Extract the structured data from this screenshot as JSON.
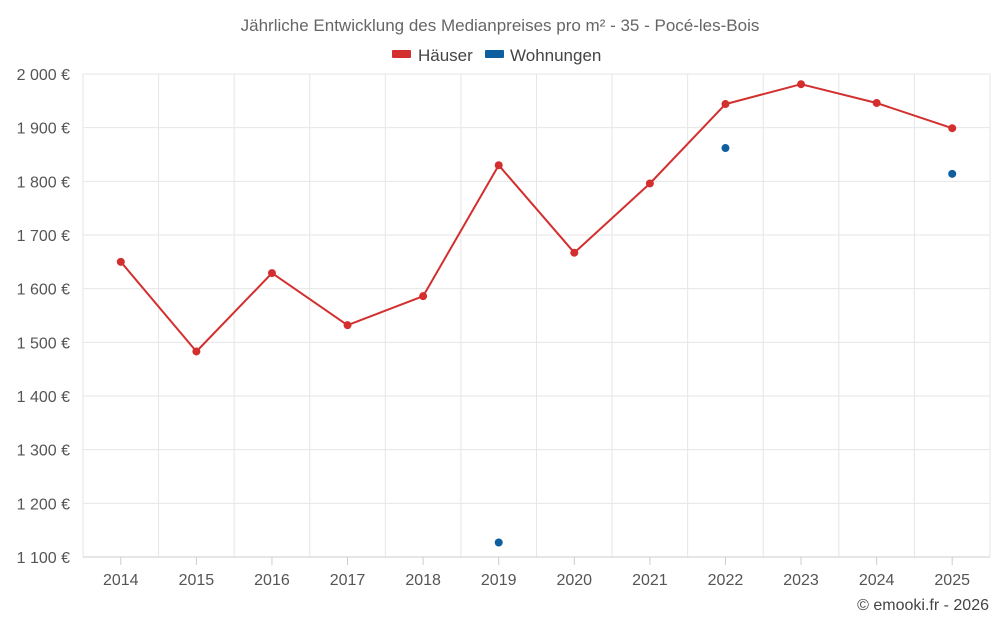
{
  "chart_data": {
    "type": "line",
    "title": "Jährliche Entwicklung des Medianpreises pro m² - 35 - Pocé-les-Bois",
    "categories": [
      "2014",
      "2015",
      "2016",
      "2017",
      "2018",
      "2019",
      "2020",
      "2021",
      "2022",
      "2023",
      "2024",
      "2025"
    ],
    "series": [
      {
        "name": "Häuser",
        "color": "#d32f2f",
        "values": [
          1650,
          1483,
          1629,
          1532,
          1586,
          1830,
          1667,
          1796,
          1944,
          1981,
          1946,
          1899
        ]
      },
      {
        "name": "Wohnungen",
        "color": "#0d5fa0",
        "values": [
          null,
          null,
          null,
          null,
          null,
          1127,
          null,
          null,
          1862,
          null,
          null,
          1814
        ]
      }
    ],
    "ylim": [
      1100,
      2000
    ],
    "yticks": [
      2000,
      1900,
      1800,
      1700,
      1600,
      1500,
      1400,
      1300,
      1200,
      1100
    ],
    "ytick_labels": [
      "2 000 €",
      "1 900 €",
      "1 800 €",
      "1 700 €",
      "1 600 €",
      "1 500 €",
      "1 400 €",
      "1 300 €",
      "1 200 €",
      "1 100 €"
    ],
    "xlabel": "",
    "ylabel": "",
    "legend": "top-center",
    "grid": true
  },
  "credit": "© emooki.fr - 2026"
}
